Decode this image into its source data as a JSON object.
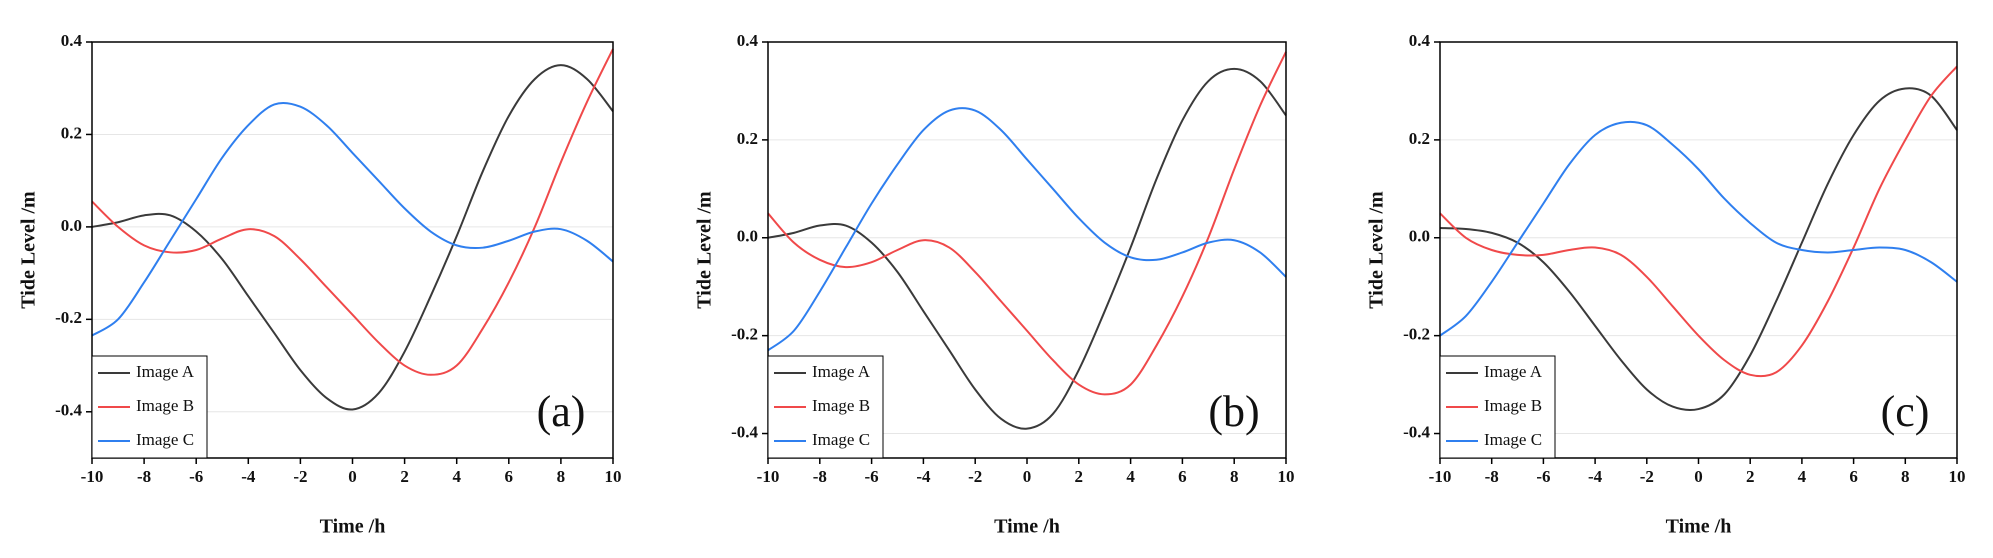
{
  "chart_data": [
    {
      "type": "line",
      "annotation": "(a)",
      "xlabel": "Time /h",
      "ylabel": "Tide Level /m",
      "x": [
        -10,
        -9,
        -8,
        -7,
        -6,
        -5,
        -4,
        -3,
        -2,
        -1,
        0,
        1,
        2,
        3,
        4,
        5,
        6,
        7,
        8,
        9,
        10
      ],
      "xlim": [
        -10,
        10
      ],
      "xticks": [
        -10,
        -8,
        -6,
        -4,
        -2,
        0,
        2,
        4,
        6,
        8,
        10
      ],
      "ylim": [
        -0.5,
        0.4
      ],
      "yticks": [
        -0.4,
        -0.2,
        {
          "value": 0,
          "label": "0.0"
        },
        0.2,
        0.4
      ],
      "grid": true,
      "series": [
        {
          "name": "Image A",
          "color": "#3a3a3a",
          "values": [
            0.0,
            0.01,
            0.025,
            0.025,
            -0.01,
            -0.07,
            -0.15,
            -0.23,
            -0.31,
            -0.37,
            -0.395,
            -0.36,
            -0.27,
            -0.15,
            -0.02,
            0.12,
            0.24,
            0.32,
            0.35,
            0.32,
            0.25
          ]
        },
        {
          "name": "Image B",
          "color": "#f0494a",
          "values": [
            0.055,
            0.0,
            -0.04,
            -0.055,
            -0.05,
            -0.025,
            -0.005,
            -0.02,
            -0.07,
            -0.13,
            -0.19,
            -0.25,
            -0.3,
            -0.32,
            -0.3,
            -0.22,
            -0.12,
            0.0,
            0.14,
            0.27,
            0.385
          ]
        },
        {
          "name": "Image C",
          "color": "#2f7fef",
          "values": [
            -0.235,
            -0.2,
            -0.12,
            -0.03,
            0.06,
            0.15,
            0.22,
            0.265,
            0.26,
            0.22,
            0.16,
            0.1,
            0.04,
            -0.01,
            -0.04,
            -0.045,
            -0.03,
            -0.01,
            -0.005,
            -0.03,
            -0.075
          ]
        }
      ]
    },
    {
      "type": "line",
      "annotation": "(b)",
      "xlabel": "Time /h",
      "ylabel": "Tide Level /m",
      "x": [
        -10,
        -9,
        -8,
        -7,
        -6,
        -5,
        -4,
        -3,
        -2,
        -1,
        0,
        1,
        2,
        3,
        4,
        5,
        6,
        7,
        8,
        9,
        10
      ],
      "xlim": [
        -10,
        10
      ],
      "xticks": [
        -10,
        -8,
        -6,
        -4,
        -2,
        0,
        2,
        4,
        6,
        8,
        10
      ],
      "ylim": [
        -0.45,
        0.4
      ],
      "yticks": [
        -0.4,
        -0.2,
        {
          "value": 0,
          "label": "0.0"
        },
        0.2,
        0.4
      ],
      "grid": true,
      "series": [
        {
          "name": "Image A",
          "color": "#3a3a3a",
          "values": [
            0.0,
            0.01,
            0.025,
            0.025,
            -0.01,
            -0.07,
            -0.15,
            -0.23,
            -0.31,
            -0.37,
            -0.39,
            -0.36,
            -0.27,
            -0.15,
            -0.02,
            0.12,
            0.24,
            0.32,
            0.345,
            0.32,
            0.25
          ]
        },
        {
          "name": "Image B",
          "color": "#f0494a",
          "values": [
            0.05,
            -0.01,
            -0.045,
            -0.06,
            -0.05,
            -0.025,
            -0.005,
            -0.02,
            -0.07,
            -0.13,
            -0.19,
            -0.25,
            -0.3,
            -0.32,
            -0.3,
            -0.22,
            -0.12,
            0.0,
            0.14,
            0.27,
            0.38
          ]
        },
        {
          "name": "Image C",
          "color": "#2f7fef",
          "values": [
            -0.23,
            -0.19,
            -0.11,
            -0.02,
            0.07,
            0.15,
            0.22,
            0.26,
            0.26,
            0.22,
            0.16,
            0.1,
            0.04,
            -0.01,
            -0.04,
            -0.045,
            -0.03,
            -0.01,
            -0.005,
            -0.03,
            -0.08
          ]
        }
      ]
    },
    {
      "type": "line",
      "annotation": "(c)",
      "xlabel": "Time /h",
      "ylabel": "Tide Level /m",
      "x": [
        -10,
        -9,
        -8,
        -7,
        -6,
        -5,
        -4,
        -3,
        -2,
        -1,
        0,
        1,
        2,
        3,
        4,
        5,
        6,
        7,
        8,
        9,
        10
      ],
      "xlim": [
        -10,
        10
      ],
      "xticks": [
        -10,
        -8,
        -6,
        -4,
        -2,
        0,
        2,
        4,
        6,
        8,
        10
      ],
      "ylim": [
        -0.45,
        0.4
      ],
      "yticks": [
        -0.4,
        -0.2,
        {
          "value": 0,
          "label": "0.0"
        },
        0.2,
        0.4
      ],
      "grid": true,
      "series": [
        {
          "name": "Image A",
          "color": "#3a3a3a",
          "values": [
            0.02,
            0.018,
            0.01,
            -0.01,
            -0.05,
            -0.11,
            -0.18,
            -0.25,
            -0.31,
            -0.345,
            -0.35,
            -0.32,
            -0.24,
            -0.13,
            -0.01,
            0.11,
            0.21,
            0.28,
            0.305,
            0.29,
            0.22
          ]
        },
        {
          "name": "Image B",
          "color": "#f0494a",
          "values": [
            0.05,
            0.0,
            -0.025,
            -0.035,
            -0.035,
            -0.025,
            -0.02,
            -0.035,
            -0.08,
            -0.14,
            -0.2,
            -0.25,
            -0.28,
            -0.275,
            -0.22,
            -0.13,
            -0.02,
            0.1,
            0.2,
            0.29,
            0.35
          ]
        },
        {
          "name": "Image C",
          "color": "#2f7fef",
          "values": [
            -0.2,
            -0.16,
            -0.09,
            -0.01,
            0.07,
            0.15,
            0.21,
            0.235,
            0.23,
            0.19,
            0.14,
            0.08,
            0.03,
            -0.01,
            -0.025,
            -0.03,
            -0.025,
            -0.02,
            -0.025,
            -0.05,
            -0.09
          ]
        }
      ]
    }
  ]
}
